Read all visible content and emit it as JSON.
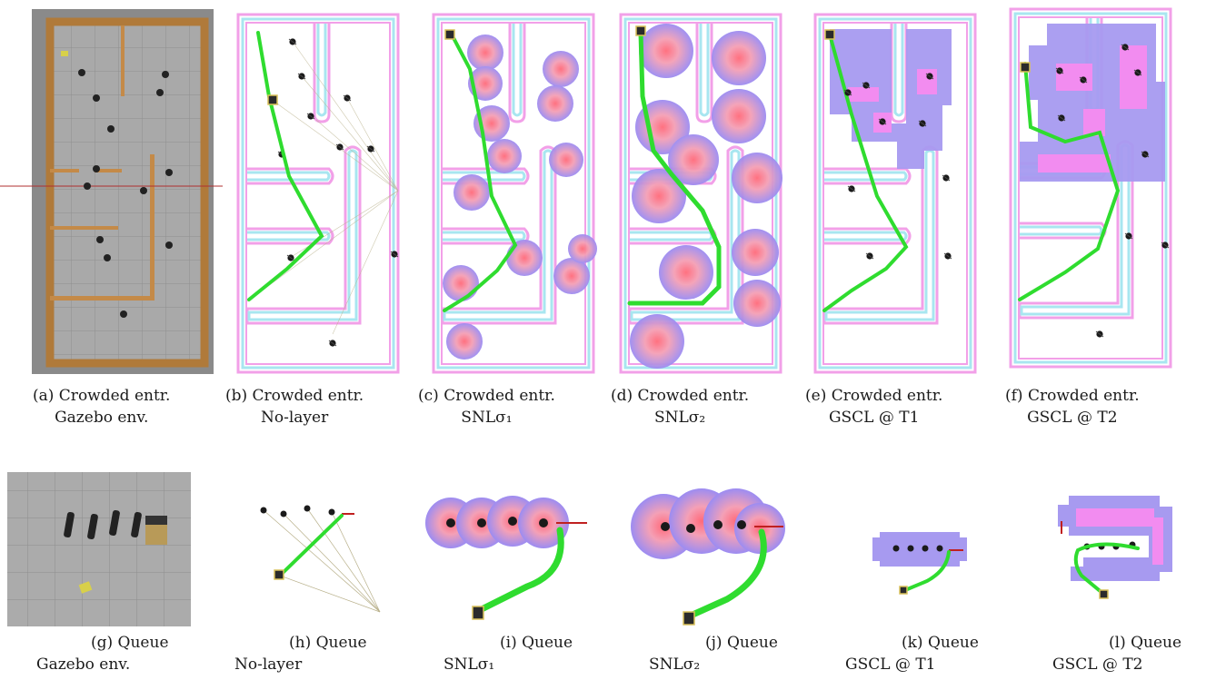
{
  "captions": [
    {
      "l1": "(a) Crowded entr.",
      "l2": "Gazebo env."
    },
    {
      "l1": "(b) Crowded entr.",
      "l2": "No-layer"
    },
    {
      "l1": "(c) Crowded entr.",
      "l2": "SNLσ₁"
    },
    {
      "l1": "(d) Crowded entr.",
      "l2": "SNLσ₂"
    },
    {
      "l1": "(e) Crowded entr.",
      "l2": "GSCL @ T1"
    },
    {
      "l1": "(f) Crowded entr.",
      "l2": "GSCL @ T2"
    },
    {
      "l1": "(g) Queue",
      "l2": "Gazebo env."
    },
    {
      "l1": "(h) Queue",
      "l2": "No-layer"
    },
    {
      "l1": "(i) Queue",
      "l2": "SNLσ₁"
    },
    {
      "l1": "(j) Queue",
      "l2": "SNLσ₂"
    },
    {
      "l1": "(k) Queue",
      "l2": "GSCL @ T1"
    },
    {
      "l1": "(l) Queue",
      "l2": "GSCL @ T2"
    }
  ],
  "colors": {
    "path": "#2fdc2f",
    "wall_outer": "#f2a0e8",
    "wall_inner": "#a8e6f0",
    "cost_outer": "#9a8cf0",
    "cost_inner": "#f08aa0",
    "gazebo_floor": "#a8a8a8",
    "gazebo_wall": "#b07a3a"
  }
}
